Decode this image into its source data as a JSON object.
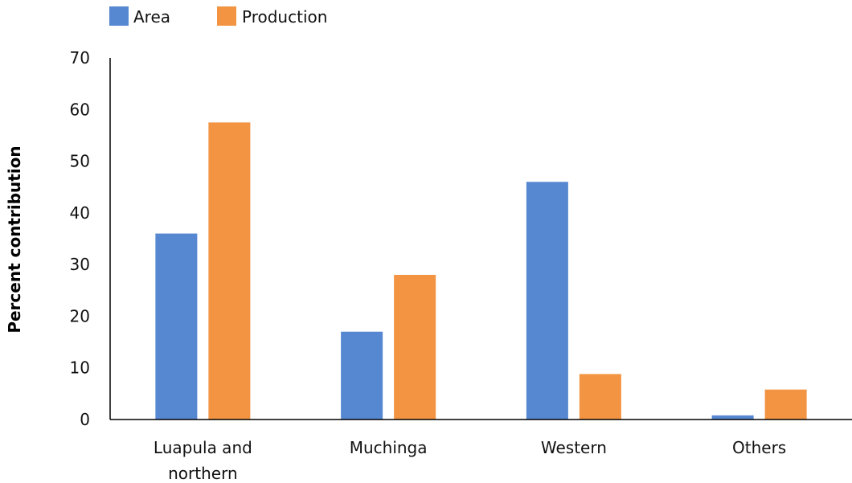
{
  "chart_data": {
    "type": "bar",
    "title": "",
    "xlabel": "",
    "ylabel": "Percent contribution",
    "categories": [
      "Luapula and northern",
      "Muchinga",
      "Western",
      "Others"
    ],
    "category_lines": [
      [
        "Luapula and",
        "northern"
      ],
      [
        "Muchinga"
      ],
      [
        "Western"
      ],
      [
        "Others"
      ]
    ],
    "series": [
      {
        "name": "Area",
        "color": "#5687d1",
        "values": [
          36,
          17,
          46,
          0.8
        ]
      },
      {
        "name": "Production",
        "color": "#f29441",
        "values": [
          57.5,
          28,
          8.8,
          5.8
        ]
      }
    ],
    "ylim": [
      0,
      70
    ],
    "yticks": [
      0,
      10,
      20,
      30,
      40,
      50,
      60,
      70
    ],
    "grid": false,
    "legend": "top-left"
  }
}
